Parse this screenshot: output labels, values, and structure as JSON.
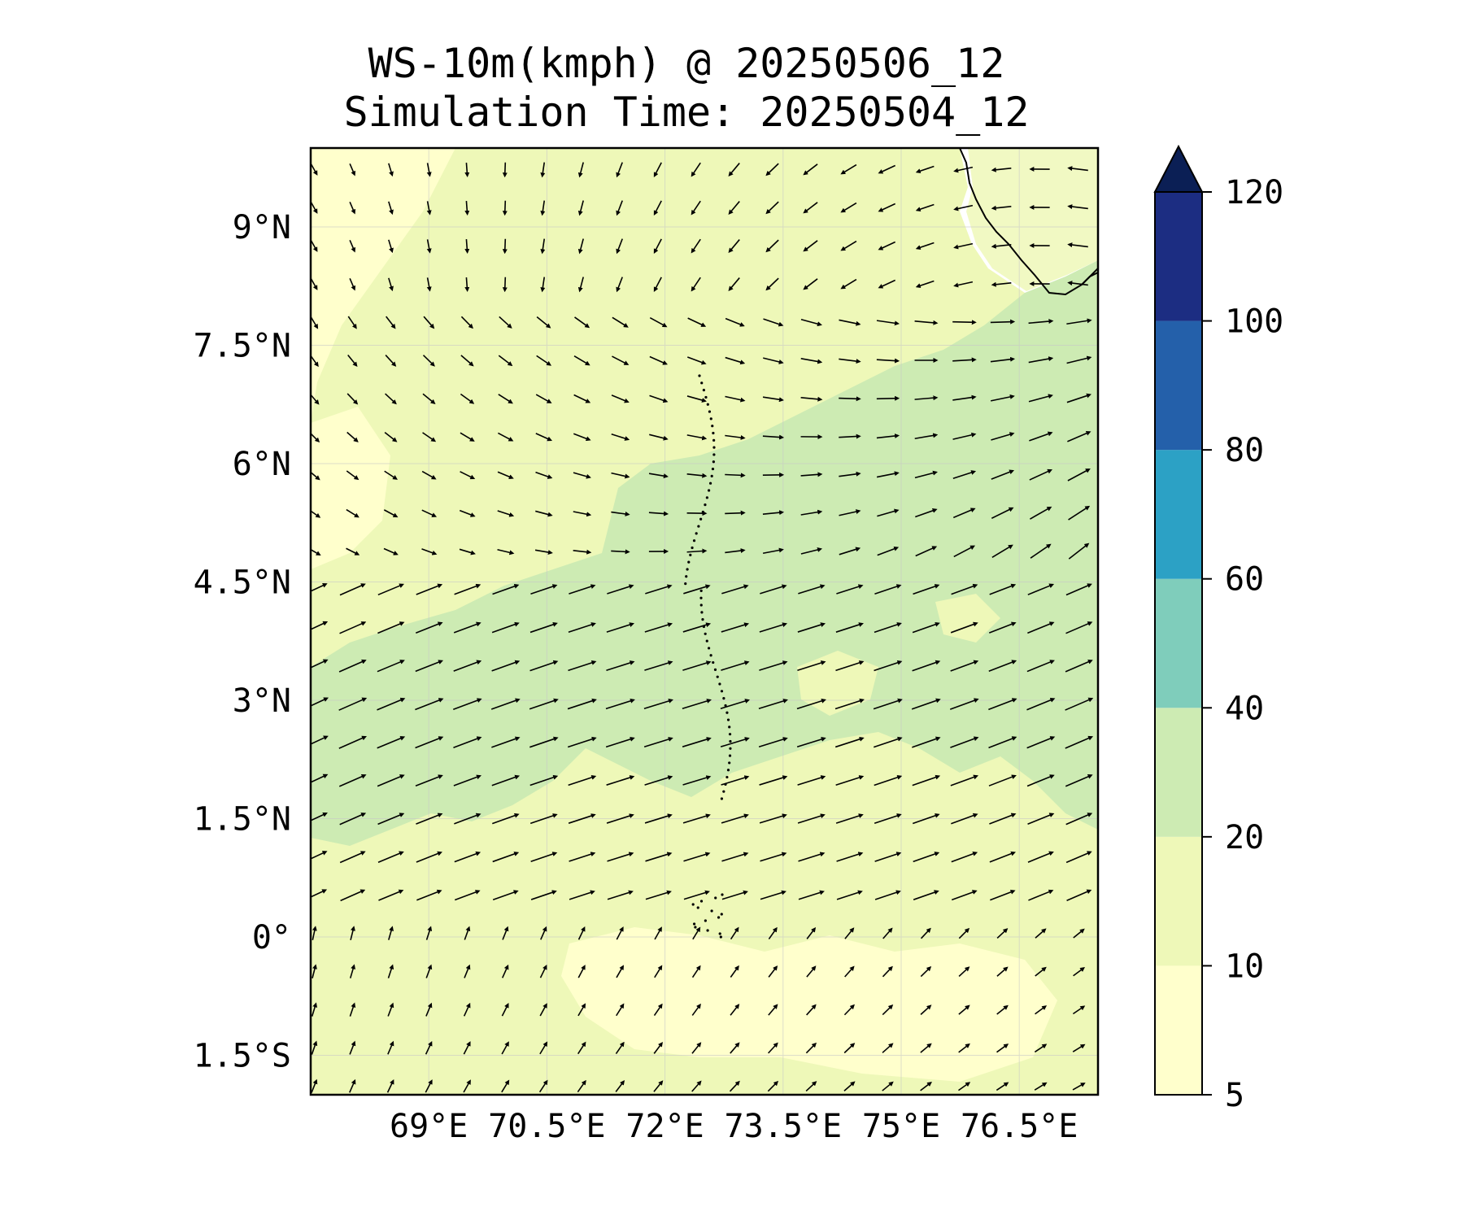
{
  "title": {
    "line1": "WS-10m(kmph) @ 20250506_12",
    "line2": "Simulation Time: 20250504_12"
  },
  "map": {
    "lon_range_E": [
      67.5,
      77.5
    ],
    "lat_range_N": [
      -2.0,
      10.0
    ],
    "lon_ticks": [
      {
        "value": 69.0,
        "label": "69°E"
      },
      {
        "value": 70.5,
        "label": "70.5°E"
      },
      {
        "value": 72.0,
        "label": "72°E"
      },
      {
        "value": 73.5,
        "label": "73.5°E"
      },
      {
        "value": 75.0,
        "label": "75°E"
      },
      {
        "value": 76.5,
        "label": "76.5°E"
      }
    ],
    "lat_ticks": [
      {
        "value": 9.0,
        "label": "9°N"
      },
      {
        "value": 7.5,
        "label": "7.5°N"
      },
      {
        "value": 6.0,
        "label": "6°N"
      },
      {
        "value": 4.5,
        "label": "4.5°N"
      },
      {
        "value": 3.0,
        "label": "3°N"
      },
      {
        "value": 1.5,
        "label": "1.5°N"
      },
      {
        "value": 0.0,
        "label": "0°"
      },
      {
        "value": -1.5,
        "label": "1.5°S"
      }
    ],
    "gridlines": true
  },
  "colorbar": {
    "levels": [
      5,
      10,
      20,
      40,
      60,
      80,
      100,
      120
    ],
    "labels": [
      "5",
      "10",
      "20",
      "40",
      "60",
      "80",
      "100",
      "120"
    ],
    "colors": [
      "#ffffcc",
      "#eef8b8",
      "#cdebb3",
      "#7fcdbb",
      "#2ca1c5",
      "#2460aa",
      "#1c2d82"
    ],
    "extend_color": "#0b1f55",
    "extend": "max"
  },
  "colors": {
    "field_low": "#ffffcc",
    "field_mid": "#eef8b8",
    "field_high": "#cdebb3",
    "arrow": "#000000",
    "coast": "#000000"
  }
}
